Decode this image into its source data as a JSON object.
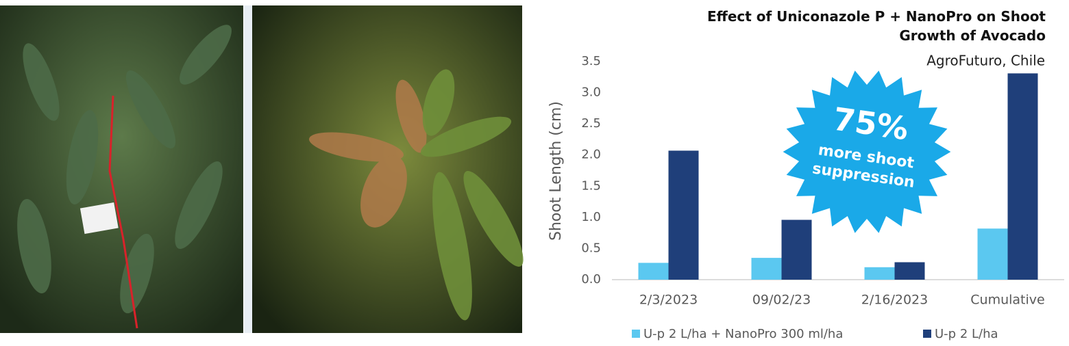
{
  "chart_data": {
    "type": "bar",
    "title": "Effect of Uniconazole P + NanoPro on Shoot Growth of Avocado",
    "subtitle": "AgroFuturo, Chile",
    "y_label": "Shoot Length (cm)",
    "categories": [
      "2/3/2023",
      "09/02/23",
      "2/16/2023",
      "Cumulative"
    ],
    "series": [
      {
        "name": "U-p 2 L/ha + NanoPro 300 ml/ha",
        "color": "#5bc8f0",
        "values": [
          0.27,
          0.35,
          0.2,
          0.82
        ]
      },
      {
        "name": "U-p 2 L/ha",
        "color": "#1f3f7a",
        "values": [
          2.07,
          0.96,
          0.28,
          3.31
        ]
      }
    ],
    "ylim": [
      0,
      3.5
    ],
    "yticks": [
      {
        "value": 0,
        "label": "0.0"
      },
      {
        "value": 0.5,
        "label": "0.5"
      },
      {
        "value": 1,
        "label": "1.0"
      },
      {
        "value": 1.5,
        "label": "1.5"
      },
      {
        "value": 2,
        "label": "2.0"
      },
      {
        "value": 2.5,
        "label": "2.5"
      },
      {
        "value": 3,
        "label": "3.0"
      },
      {
        "value": 3.5,
        "label": "3.5"
      }
    ],
    "grid": false,
    "annotation": {
      "headline": "75%",
      "text": [
        "more shoot",
        "suppression"
      ]
    }
  }
}
